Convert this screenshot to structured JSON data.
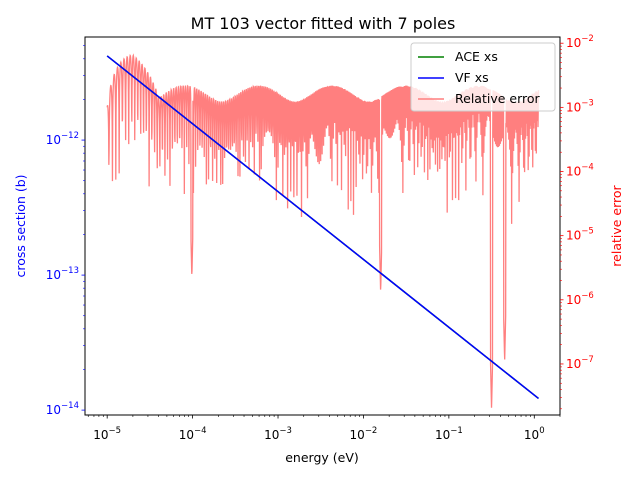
{
  "chart_data": {
    "type": "line",
    "title": "MT 103 vector fitted with 7 poles",
    "xlabel": "energy (eV)",
    "ylabel": "cross section (b)",
    "ylabel_right": "relative error",
    "xscale": "log",
    "yscale": "log",
    "yscale_right": "log",
    "xlim": [
      5.5e-06,
      2.0
    ],
    "ylim": [
      9.2e-15,
      5.8e-12
    ],
    "ylim_right": [
      1.6e-08,
      0.0125
    ],
    "x_ticks": [
      {
        "value": 1e-05,
        "label": "10^-5"
      },
      {
        "value": 0.0001,
        "label": "10^-4"
      },
      {
        "value": 0.001,
        "label": "10^-3"
      },
      {
        "value": 0.01,
        "label": "10^-2"
      },
      {
        "value": 0.1,
        "label": "10^-1"
      },
      {
        "value": 1,
        "label": "10^0"
      }
    ],
    "y_ticks": [
      {
        "value": 1e-14,
        "label": "10^-14"
      },
      {
        "value": 1e-13,
        "label": "10^-13"
      },
      {
        "value": 1e-12,
        "label": "10^-12"
      }
    ],
    "y_ticks_right": [
      {
        "value": 1e-07,
        "label": "10^-7"
      },
      {
        "value": 1e-06,
        "label": "10^-6"
      },
      {
        "value": 1e-05,
        "label": "10^-5"
      },
      {
        "value": 0.0001,
        "label": "10^-4"
      },
      {
        "value": 0.001,
        "label": "10^-3"
      },
      {
        "value": 0.01,
        "label": "10^-2"
      }
    ],
    "series": [
      {
        "name": "ACE xs",
        "color": "#008000",
        "axis": "left",
        "x": [
          1e-05,
          1.12
        ],
        "y": [
          4.2e-12,
          1.22e-14
        ]
      },
      {
        "name": "VF xs",
        "color": "#0000ff",
        "axis": "left",
        "x": [
          1e-05,
          1.12
        ],
        "y": [
          4.2e-12,
          1.22e-14
        ]
      },
      {
        "name": "Relative error",
        "color": "#ff7f7f",
        "axis": "right",
        "x_range": [
          1e-05,
          1.12
        ],
        "envelope_peak": 0.0019,
        "start_value": 0.001,
        "first_peak": 0.0065,
        "notable_minima": [
          {
            "x": 9.8e-05,
            "y": 2.2e-06
          },
          {
            "x": 0.0159,
            "y": 1.3e-06
          },
          {
            "x": 0.316,
            "y": 2e-08
          },
          {
            "x": 0.45,
            "y": 1.1e-07
          }
        ]
      }
    ],
    "legend": {
      "placement": "top-right",
      "entries": [
        "ACE xs",
        "VF xs",
        "Relative error"
      ]
    },
    "grid": false,
    "colors": {
      "left_axis": "#0000ff",
      "right_axis": "#ff0000"
    }
  }
}
